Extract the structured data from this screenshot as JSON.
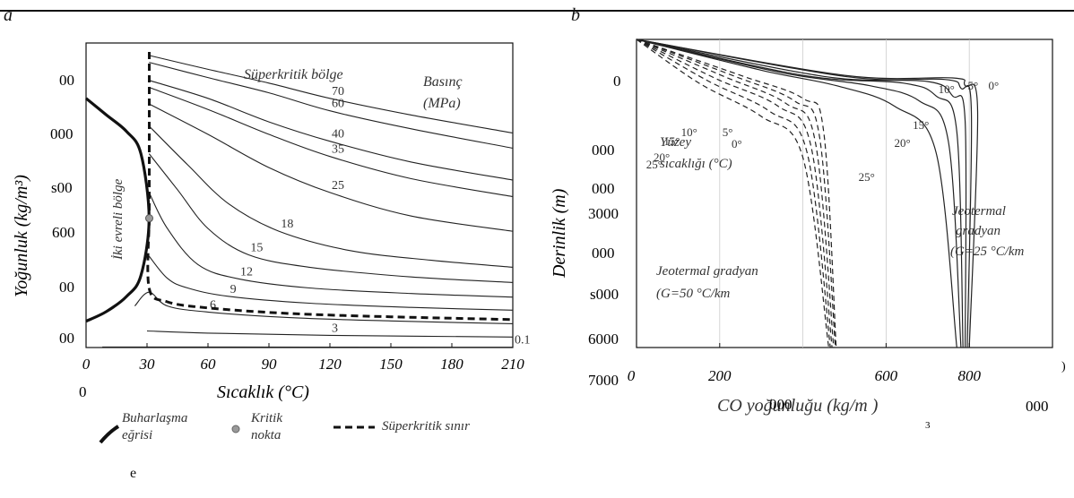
{
  "panel_labels": {
    "a": "a",
    "b": "b"
  },
  "chart_data": [
    {
      "type": "line",
      "panel": "a",
      "xlabel": "Sıcaklık (°C)",
      "ylabel": "Yoğunluk (kg/m³)",
      "x_ticks": [
        "0",
        "30",
        "60",
        "90",
        "120",
        "150",
        "180",
        "210"
      ],
      "y_ticks": [
        "00",
        "000",
        "s00",
        "600",
        "00",
        "00"
      ],
      "y_axis_bottom_label": "0",
      "xlim": [
        0,
        210
      ],
      "region_labels": [
        "Süperkritik bölge",
        "İki evreli bölge"
      ],
      "pressure_title": [
        "Basınç",
        "(MPa)"
      ],
      "critical_temperature": 31.1,
      "critical_density": 467,
      "isobars": [
        {
          "name": "0.1",
          "points": [
            [
              8,
              2
            ],
            [
              210,
              1
            ]
          ]
        },
        {
          "name": "3",
          "points": [
            [
              30,
              60
            ],
            [
              60,
              52
            ],
            [
              120,
              44
            ],
            [
              210,
              38
            ]
          ]
        },
        {
          "name": "6",
          "points": [
            [
              24,
              150
            ],
            [
              31,
              200
            ],
            [
              40,
              150
            ],
            [
              60,
              128
            ],
            [
              100,
              108
            ],
            [
              150,
              96
            ],
            [
              210,
              86
            ]
          ]
        },
        {
          "name": "9",
          "points": [
            [
              31,
              330
            ],
            [
              40,
              250
            ],
            [
              50,
              215
            ],
            [
              70,
              185
            ],
            [
              110,
              160
            ],
            [
              160,
              145
            ],
            [
              210,
              135
            ]
          ]
        },
        {
          "name": "12",
          "points": [
            [
              31,
              560
            ],
            [
              40,
              430
            ],
            [
              55,
              300
            ],
            [
              75,
              248
            ],
            [
              110,
              215
            ],
            [
              160,
              195
            ],
            [
              210,
              182
            ]
          ]
        },
        {
          "name": "15",
          "points": [
            [
              31,
              700
            ],
            [
              45,
              570
            ],
            [
              60,
              430
            ],
            [
              80,
              335
            ],
            [
              110,
              290
            ],
            [
              160,
              255
            ],
            [
              210,
              235
            ]
          ]
        },
        {
          "name": "18",
          "points": [
            [
              31,
              800
            ],
            [
              50,
              660
            ],
            [
              70,
              520
            ],
            [
              95,
              420
            ],
            [
              130,
              350
            ],
            [
              170,
              315
            ],
            [
              210,
              290
            ]
          ]
        },
        {
          "name": "25",
          "points": [
            [
              31,
              880
            ],
            [
              60,
              770
            ],
            [
              90,
              650
            ],
            [
              120,
              560
            ],
            [
              160,
              475
            ],
            [
              210,
              420
            ]
          ]
        },
        {
          "name": "35",
          "points": [
            [
              31,
              940
            ],
            [
              60,
              860
            ],
            [
              90,
              770
            ],
            [
              120,
              690
            ],
            [
              160,
              610
            ],
            [
              210,
              545
            ]
          ]
        },
        {
          "name": "40",
          "points": [
            [
              31,
              965
            ],
            [
              60,
              900
            ],
            [
              90,
              815
            ],
            [
              120,
              745
            ],
            [
              160,
              670
            ],
            [
              210,
              605
            ]
          ]
        },
        {
          "name": "60",
          "points": [
            [
              31,
              1030
            ],
            [
              60,
              975
            ],
            [
              90,
              920
            ],
            [
              120,
              855
            ],
            [
              160,
              790
            ],
            [
              210,
              720
            ]
          ]
        },
        {
          "name": "70",
          "points": [
            [
              31,
              1055
            ],
            [
              60,
              1005
            ],
            [
              90,
              955
            ],
            [
              120,
              900
            ],
            [
              160,
              840
            ],
            [
              210,
              775
            ]
          ]
        }
      ],
      "boiling_curve": [
        [
          0,
          95
        ],
        [
          10,
          130
        ],
        [
          20,
          185
        ],
        [
          27,
          260
        ],
        [
          31,
          467
        ],
        [
          27,
          700
        ],
        [
          20,
          780
        ],
        [
          10,
          840
        ],
        [
          0,
          900
        ]
      ],
      "supercritical_boundary": {
        "temperature": 31.1
      },
      "legend": [
        {
          "name": "Buharlaşma\neğrisi",
          "style": "thick-solid"
        },
        {
          "name": "Kritik\nnokta",
          "style": "point"
        },
        {
          "name": "Süperkritik sınır",
          "style": "dashed"
        }
      ],
      "footnote": "e"
    },
    {
      "type": "line",
      "panel": "b",
      "xlabel": "CO  yoğunluğu (kg/m )",
      "xlabel_superscript": "3",
      "xlabel_overlay": "000",
      "ylabel": "Derinlik (m)",
      "x_ticks": [
        "0",
        "200",
        "600",
        "800"
      ],
      "x_tick_partial_right": ")",
      "x_extra_label": "000",
      "y_ticks": [
        "0",
        "000",
        "000",
        "3000",
        "000",
        "s000",
        "6000"
      ],
      "y_axis_extra_label": "7000",
      "xlim": [
        0,
        1000
      ],
      "ylim": [
        0,
        6000
      ],
      "text_labels": {
        "surface_title": [
          "Yüzey",
          "sıcaklığı (°C)"
        ],
        "grad25": [
          "Jeotermal",
          "gradyan",
          "(G=25 °C/km"
        ],
        "grad50": [
          "Jeotermal gradyan",
          "(G=50 °C/km"
        ]
      },
      "series_g25": [
        {
          "name": "0°",
          "points": [
            [
              0,
              0
            ],
            [
              500,
              700
            ],
            [
              760,
              750
            ],
            [
              790,
              900
            ],
            [
              820,
              1400
            ],
            [
              800,
              6000
            ]
          ]
        },
        {
          "name": "5°",
          "points": [
            [
              0,
              0
            ],
            [
              500,
              720
            ],
            [
              740,
              780
            ],
            [
              780,
              950
            ],
            [
              805,
              1400
            ],
            [
              795,
              6000
            ]
          ]
        },
        {
          "name": "10°",
          "points": [
            [
              0,
              0
            ],
            [
              450,
              720
            ],
            [
              700,
              820
            ],
            [
              760,
              1100
            ],
            [
              790,
              1600
            ],
            [
              790,
              6000
            ]
          ]
        },
        {
          "name": "15°",
          "points": [
            [
              0,
              0
            ],
            [
              400,
              700
            ],
            [
              640,
              850
            ],
            [
              720,
              1100
            ],
            [
              770,
              1800
            ],
            [
              785,
              6000
            ]
          ]
        },
        {
          "name": "20°",
          "points": [
            [
              0,
              0
            ],
            [
              350,
              650
            ],
            [
              560,
              900
            ],
            [
              680,
              1200
            ],
            [
              750,
              2000
            ],
            [
              780,
              6000
            ]
          ]
        },
        {
          "name": "25°",
          "points": [
            [
              0,
              0
            ],
            [
              300,
              600
            ],
            [
              480,
              900
            ],
            [
              620,
              1300
            ],
            [
              720,
              2200
            ],
            [
              770,
              6000
            ]
          ]
        }
      ],
      "series_g50": [
        {
          "name": "0°",
          "points": [
            [
              0,
              0
            ],
            [
              250,
              700
            ],
            [
              400,
              1150
            ],
            [
              450,
              1800
            ],
            [
              480,
              6000
            ]
          ]
        },
        {
          "name": "5°",
          "points": [
            [
              0,
              0
            ],
            [
              230,
              700
            ],
            [
              380,
              1200
            ],
            [
              440,
              1900
            ],
            [
              478,
              6000
            ]
          ]
        },
        {
          "name": "10°",
          "points": [
            [
              0,
              0
            ],
            [
              210,
              720
            ],
            [
              360,
              1250
            ],
            [
              430,
              2000
            ],
            [
              474,
              6000
            ]
          ]
        },
        {
          "name": "15°",
          "points": [
            [
              0,
              0
            ],
            [
              190,
              760
            ],
            [
              340,
              1300
            ],
            [
              420,
              2100
            ],
            [
              470,
              6000
            ]
          ]
        },
        {
          "name": "20°",
          "points": [
            [
              0,
              0
            ],
            [
              170,
              800
            ],
            [
              320,
              1400
            ],
            [
              410,
              2200
            ],
            [
              466,
              6000
            ]
          ]
        },
        {
          "name": "25°",
          "points": [
            [
              0,
              0
            ],
            [
              150,
              850
            ],
            [
              300,
              1500
            ],
            [
              400,
              2300
            ],
            [
              462,
              6000
            ]
          ]
        }
      ]
    }
  ]
}
